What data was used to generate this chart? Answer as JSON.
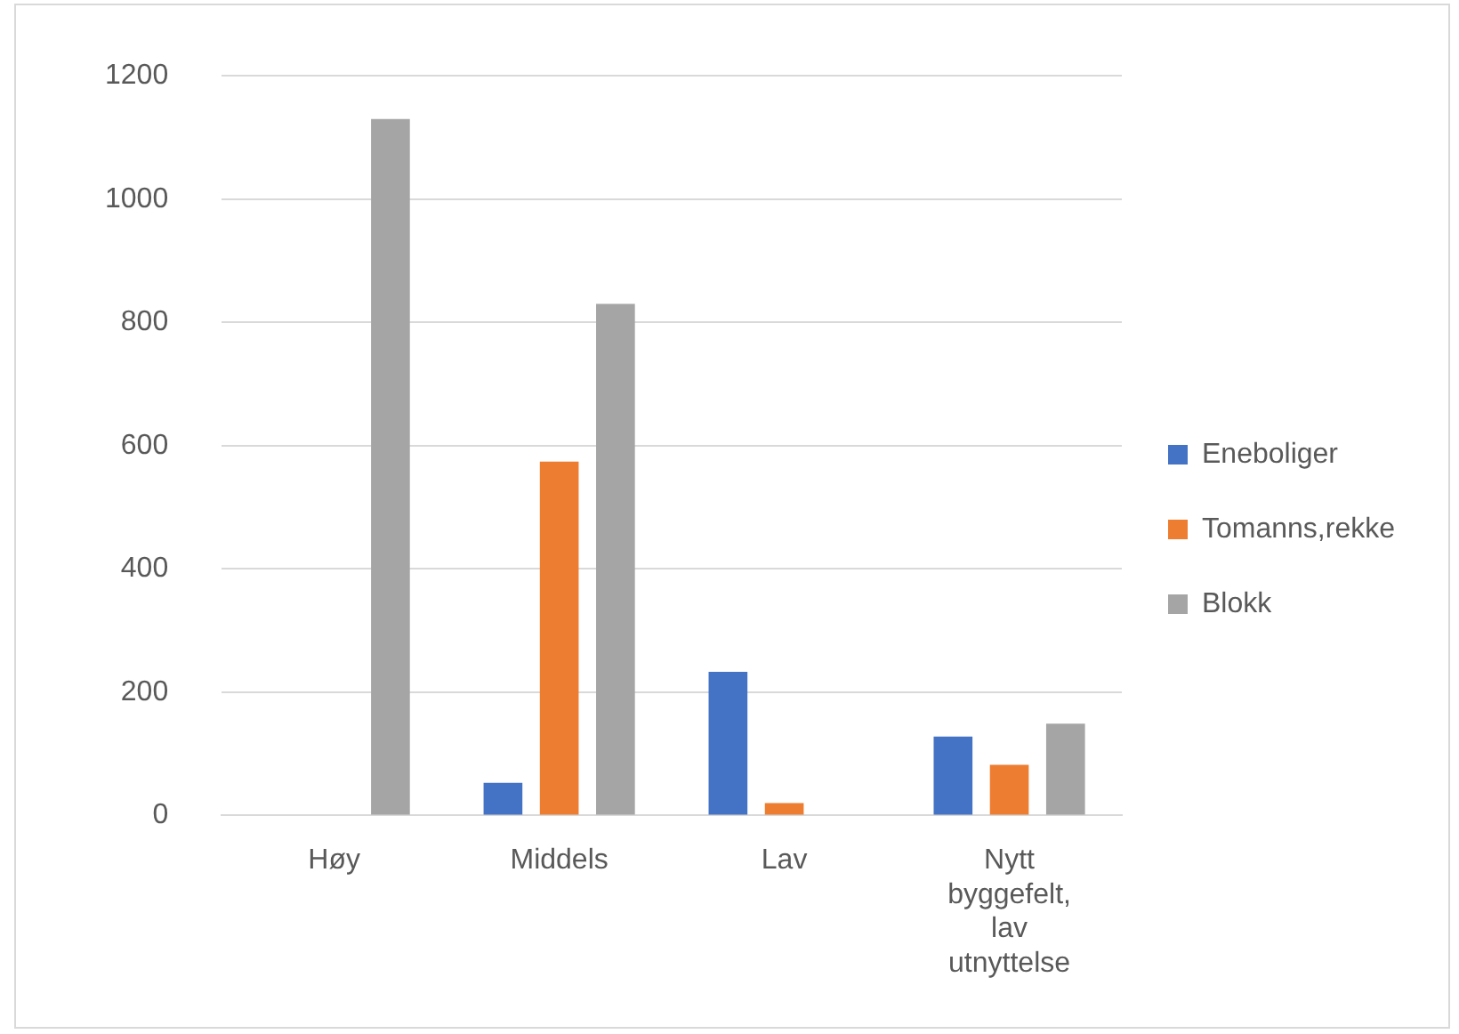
{
  "chart_data": {
    "type": "bar",
    "categories": [
      "Høy",
      "Middels",
      "Lav",
      "Nytt byggefelt, lav utnyttelse"
    ],
    "series": [
      {
        "name": "Eneboliger",
        "color": "#4472c4",
        "values": [
          null,
          53,
          233,
          128
        ]
      },
      {
        "name": "Tomanns,rekke",
        "color": "#ed7d31",
        "values": [
          null,
          574,
          20,
          82
        ]
      },
      {
        "name": "Blokk",
        "color": "#a5a5a5",
        "values": [
          1130,
          830,
          null,
          149
        ]
      }
    ],
    "ylim": [
      0,
      1200
    ],
    "yticks": [
      0,
      200,
      400,
      600,
      800,
      1000,
      1200
    ],
    "grid": "y",
    "legend": "right"
  }
}
